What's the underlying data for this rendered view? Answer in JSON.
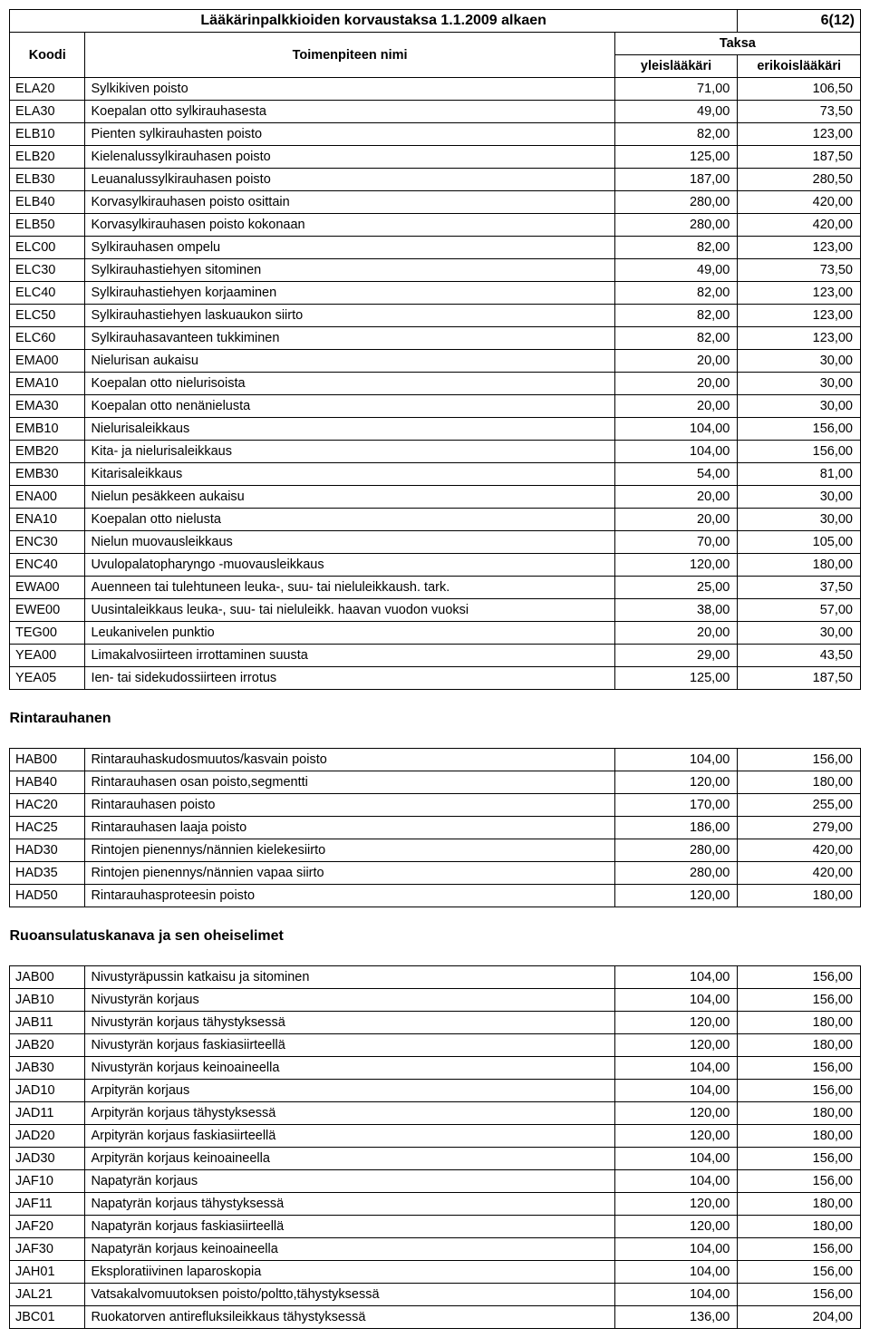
{
  "document_title": "Lääkärinpalkkioiden korvaustaksa 1.1.2009 alkaen",
  "page_number": "6(12)",
  "headers": {
    "koodi": "Koodi",
    "toimenpide": "Toimenpiteen nimi",
    "taksa": "Taksa",
    "yleis": "yleislääkäri",
    "erikois": "erikoislääkäri"
  },
  "sections": [
    {
      "title": null,
      "rows": [
        {
          "code": "ELA20",
          "name": "Sylkikiven poisto",
          "v1": "71,00",
          "v2": "106,50"
        },
        {
          "code": "ELA30",
          "name": "Koepalan otto sylkirauhasesta",
          "v1": "49,00",
          "v2": "73,50"
        },
        {
          "code": "ELB10",
          "name": "Pienten sylkirauhasten poisto",
          "v1": "82,00",
          "v2": "123,00"
        },
        {
          "code": "ELB20",
          "name": "Kielenalussylkirauhasen poisto",
          "v1": "125,00",
          "v2": "187,50"
        },
        {
          "code": "ELB30",
          "name": "Leuanalussylkirauhasen poisto",
          "v1": "187,00",
          "v2": "280,50"
        },
        {
          "code": "ELB40",
          "name": "Korvasylkirauhasen poisto osittain",
          "v1": "280,00",
          "v2": "420,00"
        },
        {
          "code": "ELB50",
          "name": "Korvasylkirauhasen poisto kokonaan",
          "v1": "280,00",
          "v2": "420,00"
        },
        {
          "code": "ELC00",
          "name": "Sylkirauhasen ompelu",
          "v1": "82,00",
          "v2": "123,00"
        },
        {
          "code": "ELC30",
          "name": "Sylkirauhastiehyen sitominen",
          "v1": "49,00",
          "v2": "73,50"
        },
        {
          "code": "ELC40",
          "name": "Sylkirauhastiehyen korjaaminen",
          "v1": "82,00",
          "v2": "123,00"
        },
        {
          "code": "ELC50",
          "name": "Sylkirauhastiehyen laskuaukon siirto",
          "v1": "82,00",
          "v2": "123,00"
        },
        {
          "code": "ELC60",
          "name": "Sylkirauhasavanteen tukkiminen",
          "v1": "82,00",
          "v2": "123,00"
        },
        {
          "code": "EMA00",
          "name": "Nielurisan aukaisu",
          "v1": "20,00",
          "v2": "30,00"
        },
        {
          "code": "EMA10",
          "name": "Koepalan otto nielurisoista",
          "v1": "20,00",
          "v2": "30,00"
        },
        {
          "code": "EMA30",
          "name": "Koepalan otto nenänielusta",
          "v1": "20,00",
          "v2": "30,00"
        },
        {
          "code": "EMB10",
          "name": "Nielurisaleikkaus",
          "v1": "104,00",
          "v2": "156,00"
        },
        {
          "code": "EMB20",
          "name": "Kita- ja nielurisaleikkaus",
          "v1": "104,00",
          "v2": "156,00"
        },
        {
          "code": "EMB30",
          "name": "Kitarisaleikkaus",
          "v1": "54,00",
          "v2": "81,00"
        },
        {
          "code": "ENA00",
          "name": "Nielun pesäkkeen aukaisu",
          "v1": "20,00",
          "v2": "30,00"
        },
        {
          "code": "ENA10",
          "name": "Koepalan otto nielusta",
          "v1": "20,00",
          "v2": "30,00"
        },
        {
          "code": "ENC30",
          "name": "Nielun muovausleikkaus",
          "v1": "70,00",
          "v2": "105,00"
        },
        {
          "code": "ENC40",
          "name": "Uvulopalatopharyngo -muovausleikkaus",
          "v1": "120,00",
          "v2": "180,00"
        },
        {
          "code": "EWA00",
          "name": "Auenneen tai tulehtuneen leuka-, suu- tai nieluleikkaush. tark.",
          "v1": "25,00",
          "v2": "37,50"
        },
        {
          "code": "EWE00",
          "name": "Uusintaleikkaus leuka-, suu- tai nieluleikk. haavan vuodon vuoksi",
          "v1": "38,00",
          "v2": "57,00"
        },
        {
          "code": "TEG00",
          "name": "Leukanivelen punktio",
          "v1": "20,00",
          "v2": "30,00"
        },
        {
          "code": "YEA00",
          "name": "Limakalvosiirteen irrottaminen suusta",
          "v1": "29,00",
          "v2": "43,50"
        },
        {
          "code": "YEA05",
          "name": "Ien- tai sidekudossiirteen irrotus",
          "v1": "125,00",
          "v2": "187,50"
        }
      ]
    },
    {
      "title": "Rintarauhanen",
      "rows": [
        {
          "code": "HAB00",
          "name": "Rintarauhaskudosmuutos/kasvain poisto",
          "v1": "104,00",
          "v2": "156,00"
        },
        {
          "code": "HAB40",
          "name": "Rintarauhasen osan poisto,segmentti",
          "v1": "120,00",
          "v2": "180,00"
        },
        {
          "code": "HAC20",
          "name": "Rintarauhasen poisto",
          "v1": "170,00",
          "v2": "255,00"
        },
        {
          "code": "HAC25",
          "name": "Rintarauhasen laaja poisto",
          "v1": "186,00",
          "v2": "279,00"
        },
        {
          "code": "HAD30",
          "name": "Rintojen pienennys/nännien kielekesiirto",
          "v1": "280,00",
          "v2": "420,00"
        },
        {
          "code": "HAD35",
          "name": "Rintojen pienennys/nännien vapaa siirto",
          "v1": "280,00",
          "v2": "420,00"
        },
        {
          "code": "HAD50",
          "name": "Rintarauhasproteesin poisto",
          "v1": "120,00",
          "v2": "180,00"
        }
      ]
    },
    {
      "title": "Ruoansulatuskanava ja sen oheiselimet",
      "rows": [
        {
          "code": "JAB00",
          "name": "Nivustyräpussin katkaisu ja sitominen",
          "v1": "104,00",
          "v2": "156,00"
        },
        {
          "code": "JAB10",
          "name": "Nivustyrän korjaus",
          "v1": "104,00",
          "v2": "156,00"
        },
        {
          "code": "JAB11",
          "name": "Nivustyrän korjaus tähystyksessä",
          "v1": "120,00",
          "v2": "180,00"
        },
        {
          "code": "JAB20",
          "name": "Nivustyrän korjaus faskiasiirteellä",
          "v1": "120,00",
          "v2": "180,00"
        },
        {
          "code": "JAB30",
          "name": "Nivustyrän korjaus keinoaineella",
          "v1": "104,00",
          "v2": "156,00"
        },
        {
          "code": "JAD10",
          "name": "Arpityrän korjaus",
          "v1": "104,00",
          "v2": "156,00"
        },
        {
          "code": "JAD11",
          "name": "Arpityrän korjaus tähystyksessä",
          "v1": "120,00",
          "v2": "180,00"
        },
        {
          "code": "JAD20",
          "name": "Arpityrän korjaus faskiasiirteellä",
          "v1": "120,00",
          "v2": "180,00"
        },
        {
          "code": "JAD30",
          "name": "Arpityrän korjaus keinoaineella",
          "v1": "104,00",
          "v2": "156,00"
        },
        {
          "code": "JAF10",
          "name": "Napatyrän korjaus",
          "v1": "104,00",
          "v2": "156,00"
        },
        {
          "code": "JAF11",
          "name": "Napatyrän korjaus tähystyksessä",
          "v1": "120,00",
          "v2": "180,00"
        },
        {
          "code": "JAF20",
          "name": "Napatyrän korjaus faskiasiirteellä",
          "v1": "120,00",
          "v2": "180,00"
        },
        {
          "code": "JAF30",
          "name": "Napatyrän korjaus keinoaineella",
          "v1": "104,00",
          "v2": "156,00"
        },
        {
          "code": "JAH01",
          "name": "Eksploratiivinen laparoskopia",
          "v1": "104,00",
          "v2": "156,00"
        },
        {
          "code": "JAL21",
          "name": "Vatsakalvomuutoksen poisto/poltto,tähystyksessä",
          "v1": "104,00",
          "v2": "156,00"
        },
        {
          "code": "JBC01",
          "name": "Ruokatorven antirefluksileikkaus tähystyksessä",
          "v1": "136,00",
          "v2": "204,00"
        }
      ]
    }
  ]
}
